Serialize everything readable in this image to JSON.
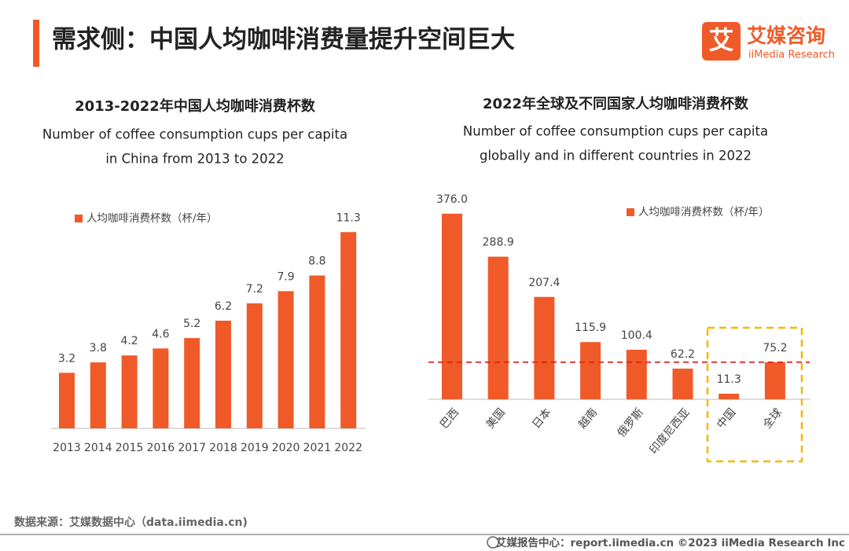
{
  "header": {
    "title": "需求侧：中国人均咖啡消费量提升空间巨大"
  },
  "logo": {
    "icon": "艾",
    "name": "艾媒咨询",
    "sub": "iiMedia Research"
  },
  "chart_data": [
    {
      "type": "bar",
      "title": "2013-2022年中国人均咖啡消费杯数",
      "subtitle": [
        "Number of coffee consumption cups per capita",
        "in China from 2013 to 2022"
      ],
      "categories": [
        "2013",
        "2014",
        "2015",
        "2016",
        "2017",
        "2018",
        "2019",
        "2020",
        "2021",
        "2022"
      ],
      "series": [
        {
          "name": "人均咖啡消费杯数（杯/年）",
          "color": "#f05a28",
          "values": [
            3.2,
            3.8,
            4.2,
            4.6,
            5.2,
            6.2,
            7.2,
            7.9,
            8.8,
            11.3
          ]
        }
      ]
    },
    {
      "type": "bar",
      "title": "2022年全球及不同国家人均咖啡消费杯数",
      "subtitle": [
        "Number of coffee consumption cups per capita",
        "globally and in different countries in 2022"
      ],
      "categories": [
        "巴西",
        "美国",
        "日本",
        "越南",
        "俄罗斯",
        "印度尼西亚",
        "中国",
        "全球"
      ],
      "series": [
        {
          "name": "人均咖啡消费杯数（杯/年）",
          "color": "#f05a28",
          "values": [
            376.0,
            288.9,
            207.4,
            115.9,
            100.4,
            62.2,
            11.3,
            75.2
          ],
          "value_labels": [
            "376.0",
            "288.9",
            "207.4",
            "115.9",
            "100.4",
            "62.2",
            "11.3",
            "75.2"
          ]
        }
      ]
    }
  ],
  "source": "数据来源：艾媒数据中心（data.iimedia.cn)",
  "footer": "艾媒报告中心：report.iimedia.cn  ©2023  iiMedia Research  Inc"
}
